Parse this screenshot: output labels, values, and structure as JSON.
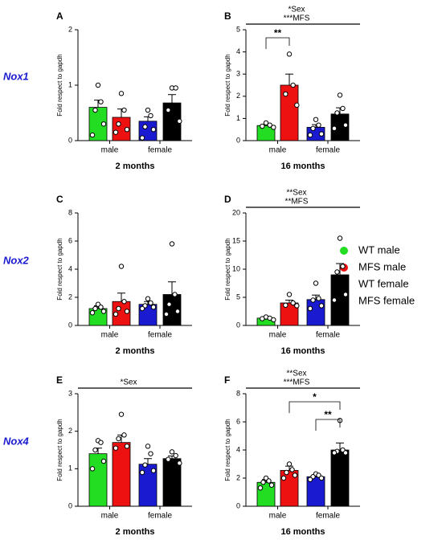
{
  "row_labels": [
    "Nox1",
    "Nox2",
    "Nox4"
  ],
  "legend": [
    {
      "name": "WT male",
      "color": "#22dd22"
    },
    {
      "name": "MFS male",
      "color": "#ee1111"
    },
    {
      "name": "WT female",
      "color": "#1a1ad0"
    },
    {
      "name": "MFS female",
      "color": "#000000"
    }
  ],
  "chart_data": [
    {
      "type": "bar",
      "panel": "A",
      "ylabel": "Fold respect to gapdh",
      "xlabel": "2 months",
      "groups": [
        "male",
        "female"
      ],
      "values": [
        0.6,
        0.42,
        0.35,
        0.68
      ],
      "errors": [
        0.13,
        0.15,
        0.08,
        0.15
      ],
      "points": [
        [
          1.0,
          0.7,
          0.55,
          0.3,
          0.1
        ],
        [
          0.85,
          0.55,
          0.3,
          0.2,
          0.15
        ],
        [
          0.55,
          0.45,
          0.25,
          0.2,
          0.05
        ],
        [
          0.95,
          0.95,
          0.55,
          0.35
        ]
      ],
      "ylim": [
        0,
        2
      ],
      "yticks": [
        0,
        1,
        2
      ],
      "annotations": [],
      "brackets": []
    },
    {
      "type": "bar",
      "panel": "B",
      "ylabel": "Fold respect to gapdh",
      "xlabel": "16 months",
      "groups": [
        "male",
        "female"
      ],
      "values": [
        0.68,
        2.5,
        0.6,
        1.2
      ],
      "errors": [
        0.05,
        0.5,
        0.12,
        0.28
      ],
      "points": [
        [
          0.8,
          0.7,
          0.65,
          0.6
        ],
        [
          3.9,
          2.5,
          2.1,
          1.6
        ],
        [
          0.95,
          0.7,
          0.55,
          0.3,
          0.25
        ],
        [
          2.05,
          1.45,
          1.25,
          0.7,
          0.55
        ]
      ],
      "ylim": [
        0,
        5
      ],
      "yticks": [
        0,
        1,
        2,
        3,
        4,
        5
      ],
      "annotations": [
        "*Sex",
        "***MFS"
      ],
      "brackets": [
        {
          "label": "**",
          "from": 0,
          "to": 1
        }
      ]
    },
    {
      "type": "bar",
      "panel": "C",
      "ylabel": "Fold respect to gapdh",
      "xlabel": "2 months",
      "groups": [
        "male",
        "female"
      ],
      "values": [
        1.2,
        1.7,
        1.5,
        2.2
      ],
      "errors": [
        0.2,
        0.6,
        0.2,
        0.9
      ],
      "points": [
        [
          1.5,
          1.3,
          1.2,
          1.0,
          0.9
        ],
        [
          4.2,
          1.7,
          1.2,
          1.0,
          0.8
        ],
        [
          1.9,
          1.6,
          1.4,
          1.3,
          1.2
        ],
        [
          5.8,
          2.2,
          1.5,
          1.0,
          0.8
        ]
      ],
      "ylim": [
        0,
        8
      ],
      "yticks": [
        0,
        2,
        4,
        6,
        8
      ],
      "annotations": [],
      "brackets": []
    },
    {
      "type": "bar",
      "panel": "D",
      "ylabel": "Fold respect to gapdh",
      "xlabel": "16 months",
      "groups": [
        "male",
        "female"
      ],
      "values": [
        1.3,
        4.0,
        4.6,
        9.0
      ],
      "errors": [
        0.2,
        0.5,
        0.8,
        2.0
      ],
      "points": [
        [
          1.5,
          1.3,
          1.2,
          1.0
        ],
        [
          5.5,
          4.0,
          3.6,
          3.5
        ],
        [
          7.5,
          4.8,
          4.5,
          3.5,
          3.0
        ],
        [
          15.5,
          10.5,
          9.5,
          5.5,
          4.5
        ]
      ],
      "ylim": [
        0,
        20
      ],
      "yticks": [
        0,
        5,
        10,
        15,
        20
      ],
      "annotations": [
        "**Sex",
        "**MFS"
      ],
      "brackets": []
    },
    {
      "type": "bar",
      "panel": "E",
      "ylabel": "Fold respect to gapdh",
      "xlabel": "2 months",
      "groups": [
        "male",
        "female"
      ],
      "values": [
        1.4,
        1.7,
        1.12,
        1.27
      ],
      "errors": [
        0.15,
        0.2,
        0.15,
        0.07
      ],
      "points": [
        [
          1.75,
          1.7,
          1.5,
          1.2,
          1.0
        ],
        [
          2.45,
          1.9,
          1.8,
          1.6,
          1.55
        ],
        [
          1.6,
          1.4,
          1.1,
          0.95,
          0.9
        ],
        [
          1.45,
          1.35,
          1.25,
          1.15
        ]
      ],
      "ylim": [
        0,
        3
      ],
      "yticks": [
        0,
        1,
        2,
        3
      ],
      "annotations": [
        "*Sex"
      ],
      "brackets": []
    },
    {
      "type": "bar",
      "panel": "F",
      "ylabel": "Fold respect to gapdh",
      "xlabel": "16 months",
      "groups": [
        "male",
        "female"
      ],
      "values": [
        1.7,
        2.55,
        2.1,
        4.0
      ],
      "errors": [
        0.2,
        0.3,
        0.1,
        0.5
      ],
      "points": [
        [
          2.0,
          1.8,
          1.7,
          1.5,
          1.3
        ],
        [
          3.0,
          2.6,
          2.4,
          2.2,
          2.0
        ],
        [
          2.3,
          2.2,
          2.1,
          2.0,
          1.9
        ],
        [
          6.1,
          4.0,
          3.9,
          3.8,
          3.8
        ]
      ],
      "ylim": [
        0,
        8
      ],
      "yticks": [
        0,
        2,
        4,
        6,
        8
      ],
      "annotations": [
        "**Sex",
        "***MFS"
      ],
      "brackets": [
        {
          "label": "*",
          "from": 1,
          "to": 3
        },
        {
          "label": "**",
          "from": 2,
          "to": 3
        }
      ]
    }
  ]
}
